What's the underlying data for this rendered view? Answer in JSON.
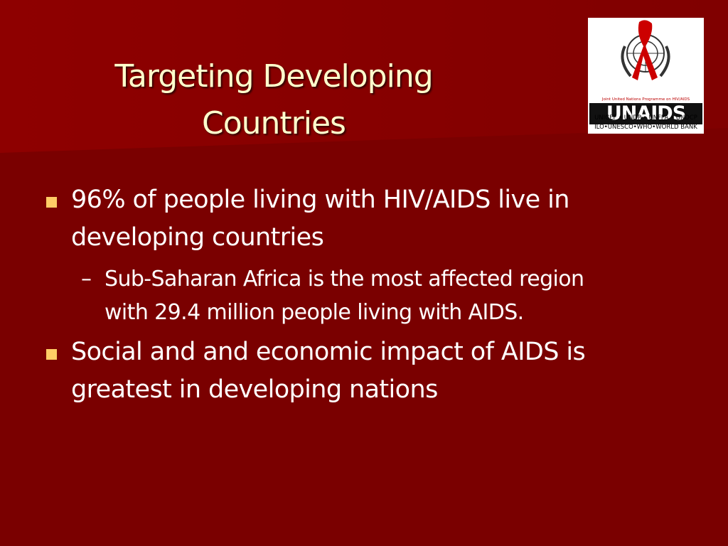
{
  "slide": {
    "title_lines": [
      "Targeting Developing",
      "Countries"
    ],
    "logo": {
      "tagline": "Joint United Nations Programme on HIV/AIDS",
      "name": "UNAIDS",
      "sponsors_line1": "UNICEF • UNDP • UNFPA • UNDCP",
      "sponsors_line2": "ILO•UNESCO•WHO•WORLD BANK"
    },
    "bullets": [
      {
        "text": "96% of people living with HIV/AIDS live in developing countries",
        "sub": [
          "Sub-Saharan Africa is the most affected region with 29.4 million people living with AIDS."
        ]
      },
      {
        "text": "Social and and economic impact of AIDS is greatest in developing nations",
        "sub": []
      }
    ],
    "sub_marker": "–"
  }
}
